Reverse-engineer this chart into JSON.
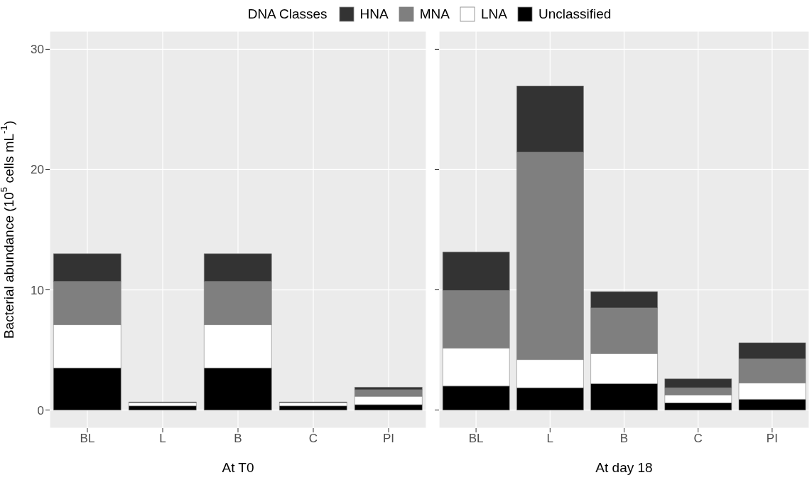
{
  "chart_data": [
    {
      "type": "bar",
      "stacked": true,
      "xlabel": "At T0",
      "ylabel": "Bacterial abundance (10$^{5}$ cells mL$^{-1}$)",
      "legend_title": "DNA Classes",
      "legend": "top",
      "grid": true,
      "categories": [
        "BL",
        "L",
        "B",
        "C",
        "PI"
      ],
      "ylim": [
        -1.5,
        31.5
      ],
      "yticks": [
        0,
        10,
        20,
        30
      ],
      "series": [
        {
          "name": "Unclassified",
          "color": "#000000",
          "values": [
            3.5,
            0.35,
            3.5,
            0.35,
            0.45
          ]
        },
        {
          "name": "LNA",
          "color": "#ffffff",
          "values": [
            3.6,
            0.25,
            3.6,
            0.25,
            0.7
          ]
        },
        {
          "name": "MNA",
          "color": "#7f7f7f",
          "values": [
            3.6,
            0.05,
            3.6,
            0.05,
            0.55
          ]
        },
        {
          "name": "HNA",
          "color": "#333333",
          "values": [
            2.3,
            0.02,
            2.3,
            0.02,
            0.2
          ]
        }
      ]
    },
    {
      "type": "bar",
      "stacked": true,
      "xlabel": "At day 18",
      "grid": true,
      "tick_labels": "x",
      "categories": [
        "BL",
        "L",
        "B",
        "C",
        "PI"
      ],
      "ylim": [
        -1.5,
        31.5
      ],
      "yticks": [
        0,
        10,
        20,
        30
      ],
      "series": [
        {
          "color": "#000000",
          "values": [
            2.0,
            1.85,
            2.2,
            0.6,
            0.9
          ]
        },
        {
          "color": "#ffffff",
          "values": [
            3.15,
            2.35,
            2.5,
            0.65,
            1.35
          ]
        },
        {
          "color": "#7f7f7f",
          "values": [
            4.8,
            17.25,
            3.8,
            0.6,
            2.0
          ]
        },
        {
          "color": "#333333",
          "values": [
            3.2,
            5.5,
            1.35,
            0.75,
            1.35
          ]
        }
      ]
    }
  ]
}
